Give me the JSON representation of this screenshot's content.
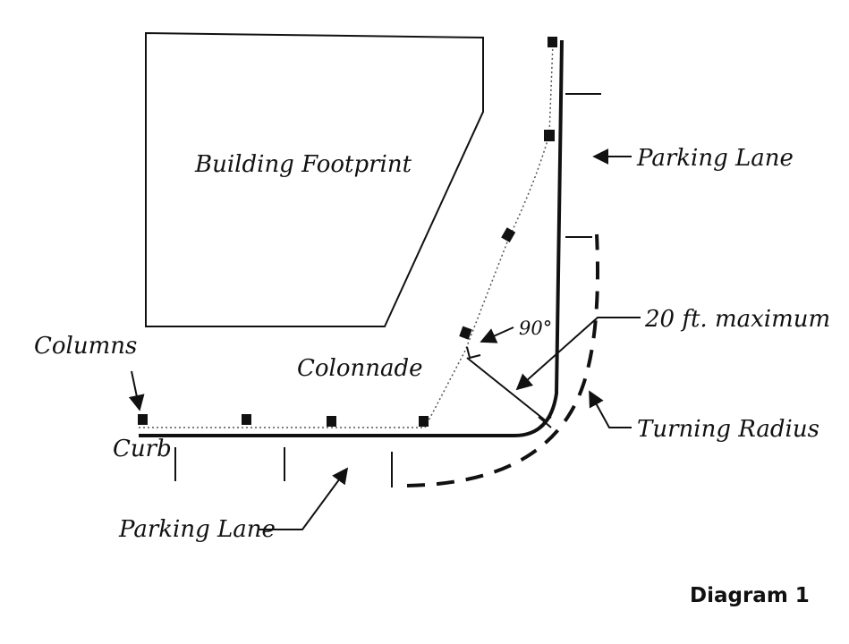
{
  "labels": {
    "building": "Building Footprint",
    "parking_lane_right": "Parking Lane",
    "columns": "Columns",
    "angle": "90°",
    "max_radius": "20 ft. maximum",
    "colonnade": "Colonnade",
    "curb": "Curb",
    "turning_radius": "Turning Radius",
    "parking_lane_bottom": "Parking Lane",
    "caption": "Diagram 1"
  },
  "colors": {
    "ink": "#111111",
    "dotted": "#555555"
  }
}
